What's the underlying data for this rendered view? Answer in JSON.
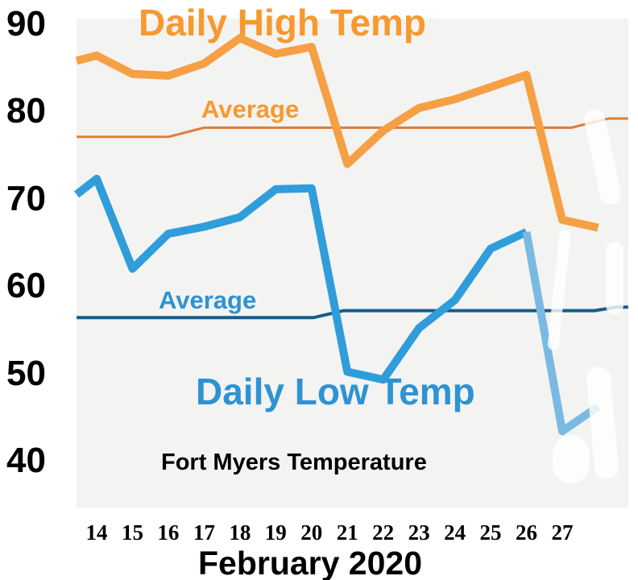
{
  "texts": {
    "title_high": "Daily High Temp",
    "title_low": "Daily Low Temp",
    "avg_high_label": "Average",
    "avg_low_label": "Average",
    "caption": "Fort Myers Temperature",
    "x_axis_title": "February 2020"
  },
  "colors": {
    "high": "#f5a044",
    "high_avg": "#de7e3c",
    "low": "#2f9dda",
    "low_light": "#7abae2",
    "low_avg": "#135e8d",
    "plot_bg": "#f3f3f1",
    "text": "#000000"
  },
  "chart_data": {
    "type": "line",
    "title": "Fort Myers Temperature",
    "xlabel": "February 2020",
    "x_ticks": [
      14,
      15,
      16,
      17,
      18,
      19,
      20,
      21,
      22,
      23,
      24,
      25,
      26,
      27
    ],
    "y_ticks": [
      90,
      80,
      70,
      60,
      50,
      40
    ],
    "ylim": [
      34.5,
      90.6
    ],
    "xlim_days": [
      13.44,
      28.84
    ],
    "grid": false,
    "legend_position": "inline-labels",
    "series": [
      {
        "name": "Daily High Temp",
        "role": "daily-high",
        "color_key": "high",
        "stroke_width": 10,
        "days": [
          13.44,
          14,
          15,
          16,
          17,
          18,
          19,
          20,
          21,
          22,
          23,
          24,
          25,
          26,
          27,
          28
        ],
        "values": [
          85.8,
          86.4,
          84.3,
          84.1,
          85.5,
          88.4,
          86.6,
          87.4,
          74.0,
          77.8,
          80.4,
          81.4,
          82.8,
          84.2,
          67.6,
          66.7
        ]
      },
      {
        "name": "Daily Low Temp",
        "role": "daily-low",
        "color_key": "low",
        "light_tail_from_day": 26,
        "light_color_key": "low_light",
        "stroke_width": 10,
        "days": [
          13.44,
          14,
          15,
          16,
          17,
          18,
          19,
          20,
          21,
          22,
          23,
          24,
          25,
          26,
          27,
          28
        ],
        "values": [
          70.5,
          72.3,
          62.0,
          66.0,
          66.8,
          67.9,
          71.1,
          71.2,
          50.2,
          49.3,
          55.2,
          58.4,
          64.3,
          66.2,
          43.4,
          46.2
        ]
      },
      {
        "name": "Average (daily high)",
        "role": "avg-high",
        "color_key": "high_avg",
        "stroke_width": 3,
        "points": [
          [
            13.44,
            77.1
          ],
          [
            16.0,
            77.1
          ],
          [
            17.0,
            78.15
          ],
          [
            27.25,
            78.15
          ],
          [
            28.3,
            79.2
          ],
          [
            28.84,
            79.2
          ]
        ]
      },
      {
        "name": "Average (daily low)",
        "role": "avg-low",
        "color_key": "low_avg",
        "stroke_width": 4,
        "points": [
          [
            13.44,
            56.4
          ],
          [
            20.05,
            56.4
          ],
          [
            20.9,
            57.2
          ],
          [
            27.9,
            57.2
          ],
          [
            28.5,
            57.6
          ],
          [
            28.84,
            57.6
          ]
        ]
      }
    ]
  }
}
